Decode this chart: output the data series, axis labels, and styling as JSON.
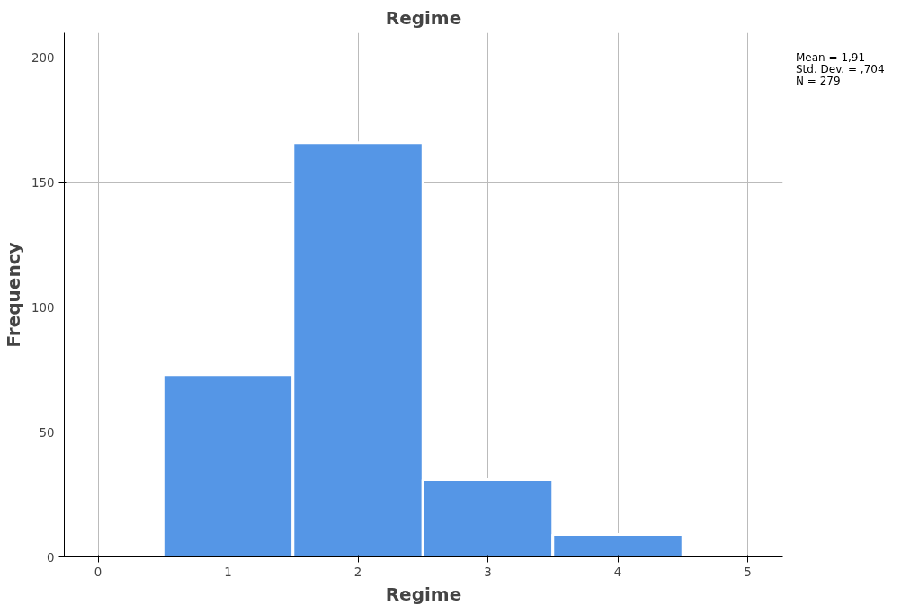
{
  "chart_data": {
    "type": "histogram",
    "title": "Regime",
    "xlabel": "Regime",
    "ylabel": "Frequency",
    "bins": [
      0.5,
      1.5,
      2.5,
      3.5,
      4.5
    ],
    "values": [
      73,
      166,
      31,
      9
    ],
    "color": "#5596e6",
    "xlim": [
      -0.26,
      5.27
    ],
    "xticks": [
      0,
      1,
      2,
      3,
      4,
      5
    ],
    "ylim": [
      0,
      210
    ],
    "yticks": [
      0,
      50,
      100,
      150,
      200
    ],
    "grid": true,
    "annotations": [
      "Mean = 1,91",
      "Std. Dev. = ,704",
      "N = 279"
    ]
  }
}
